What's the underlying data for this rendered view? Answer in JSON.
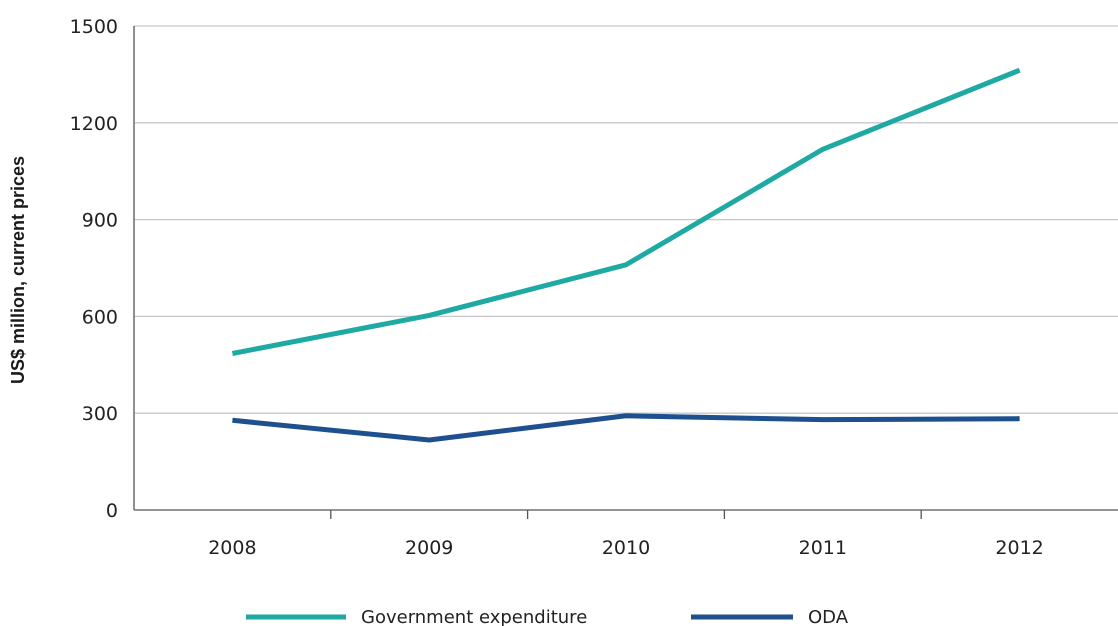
{
  "chart_data": {
    "type": "line",
    "title": "",
    "xlabel": "",
    "ylabel": "US$ million, current prices",
    "categories": [
      "2008",
      "2009",
      "2010",
      "2011",
      "2012"
    ],
    "ylim": [
      0,
      1500
    ],
    "yticks": [
      0,
      300,
      600,
      900,
      1200,
      1500
    ],
    "grid": true,
    "legend_position": "bottom",
    "series": [
      {
        "name": "Government expenditure",
        "color": "#1fa9a3",
        "values": [
          485,
          603,
          760,
          1118,
          1363
        ]
      },
      {
        "name": "ODA",
        "color": "#1e4f8e",
        "values": [
          278,
          217,
          292,
          280,
          283
        ]
      }
    ]
  },
  "colors": {
    "grid": "#c8c8c8",
    "axis": "#555555"
  }
}
